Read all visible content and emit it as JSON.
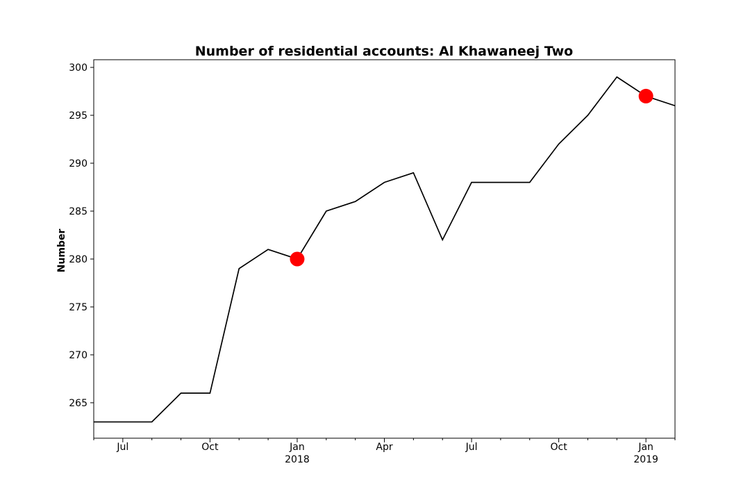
{
  "chart_data": {
    "type": "line",
    "title": "Number of residential accounts: Al Khawaneej Two",
    "xlabel": "",
    "ylabel": "Number",
    "ylim": [
      261.3,
      300.8
    ],
    "xlim": [
      "2017-06",
      "2019-02"
    ],
    "grid": false,
    "legend": "none",
    "y_ticks": [
      265,
      270,
      275,
      280,
      285,
      290,
      295,
      300
    ],
    "x_ticks": [
      {
        "date": "2017-07",
        "label": "Jul",
        "sub": ""
      },
      {
        "date": "2017-10",
        "label": "Oct",
        "sub": ""
      },
      {
        "date": "2018-01",
        "label": "Jan",
        "sub": "2018"
      },
      {
        "date": "2018-04",
        "label": "Apr",
        "sub": ""
      },
      {
        "date": "2018-07",
        "label": "Jul",
        "sub": ""
      },
      {
        "date": "2018-10",
        "label": "Oct",
        "sub": ""
      },
      {
        "date": "2019-01",
        "label": "Jan",
        "sub": "2019"
      }
    ],
    "minor_ticks": [
      "2017-06",
      "2017-08",
      "2017-09",
      "2017-11",
      "2017-12",
      "2018-02",
      "2018-03",
      "2018-05",
      "2018-06",
      "2018-08",
      "2018-09",
      "2018-11",
      "2018-12",
      "2019-02"
    ],
    "series": [
      {
        "color": "#000000",
        "x": [
          "2017-06",
          "2017-07",
          "2017-08",
          "2017-09",
          "2017-10",
          "2017-11",
          "2017-12",
          "2018-01",
          "2018-02",
          "2018-03",
          "2018-04",
          "2018-05",
          "2018-06",
          "2018-07",
          "2018-08",
          "2018-09",
          "2018-10",
          "2018-11",
          "2018-12",
          "2019-01",
          "2019-02"
        ],
        "y": [
          263,
          263,
          263,
          266,
          266,
          279,
          281,
          280,
          285,
          286,
          288,
          289,
          282,
          288,
          288,
          288,
          292,
          295,
          299,
          297,
          296
        ]
      }
    ],
    "highlights": {
      "color": "#ff0000",
      "x": [
        "2018-01",
        "2019-01"
      ],
      "y": [
        280,
        297
      ]
    }
  }
}
